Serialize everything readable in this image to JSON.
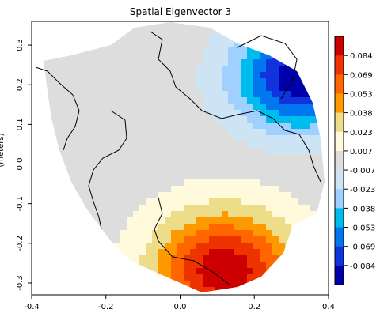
{
  "chart_data": {
    "type": "heatmap",
    "title": "Spatial Eigenvector  3",
    "xlabel": "",
    "ylabel": "(meters)",
    "xlim": [
      -0.4,
      0.4
    ],
    "ylim": [
      -0.33,
      0.36
    ],
    "x_ticks": [
      "-0.4",
      "-0.2",
      "0.0",
      "0.2",
      "0.4"
    ],
    "y_ticks": [
      "-0.3",
      "-0.2",
      "-0.1",
      "0.0",
      "0.1",
      "0.2",
      "0.3"
    ],
    "colorbar": {
      "labels": [
        "0.084",
        "0.069",
        "0.053",
        "0.038",
        "0.023",
        "0.007",
        "-0.007",
        "-0.023",
        "-0.038",
        "-0.053",
        "-0.069",
        "-0.084"
      ],
      "colors": [
        "#cc0000",
        "#ee3300",
        "#ff6600",
        "#ff9900",
        "#eedd88",
        "#fffadc",
        "#dddddd",
        "#cce4f4",
        "#a0d0ff",
        "#00bbee",
        "#0077ee",
        "#1133dd",
        "#0000aa"
      ]
    },
    "field": {
      "description_of_pattern": "dipole",
      "positive_center": [
        0.12,
        -0.27
      ],
      "negative_center": [
        0.32,
        0.22
      ],
      "max_value": 0.09,
      "min_value": -0.09
    }
  }
}
